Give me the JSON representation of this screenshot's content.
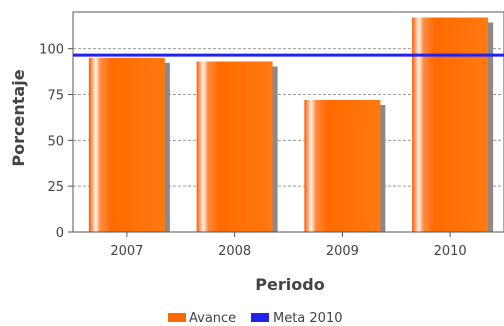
{
  "chart_data": {
    "type": "bar",
    "title": "",
    "xlabel": "Periodo",
    "ylabel": "Porcentaje",
    "categories": [
      "2007",
      "2008",
      "2009",
      "2010"
    ],
    "series": [
      {
        "name": "Avance",
        "values": [
          95,
          93,
          72,
          117
        ]
      }
    ],
    "reference_lines": [
      {
        "name": "Meta 2010",
        "value": 96.5
      }
    ],
    "ylim": [
      0,
      120
    ],
    "yticks": [
      0,
      25,
      50,
      75,
      100
    ],
    "grid": true,
    "legend_position": "bottom-center"
  },
  "colors": {
    "bar": "#ff6a00",
    "bar_highlight": "#ffe0c8",
    "bar_shadow": "#8a8a8a",
    "meta_line": "#2222ee",
    "grid": "#9a9a9a",
    "axis": "#555555",
    "text": "#444444"
  }
}
